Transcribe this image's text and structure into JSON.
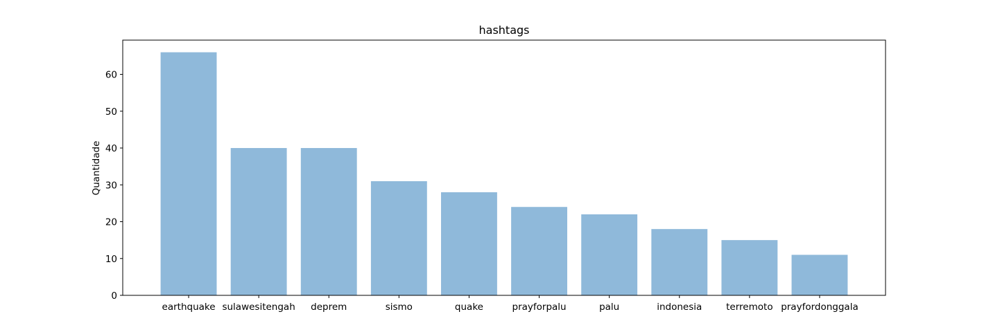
{
  "chart_data": {
    "type": "bar",
    "title": "hashtags",
    "xlabel": "",
    "ylabel": "Quantidade",
    "categories": [
      "earthquake",
      "sulawesitengah",
      "deprem",
      "sismo",
      "quake",
      "prayforpalu",
      "palu",
      "indonesia",
      "terremoto",
      "prayfordonggala"
    ],
    "values": [
      66,
      40,
      40,
      31,
      28,
      24,
      22,
      18,
      15,
      11
    ],
    "ylim": [
      0,
      69.3
    ],
    "yticks": [
      0,
      10,
      20,
      30,
      40,
      50,
      60
    ],
    "bar_color": "#8fb9da",
    "grid": false,
    "legend": "none"
  }
}
